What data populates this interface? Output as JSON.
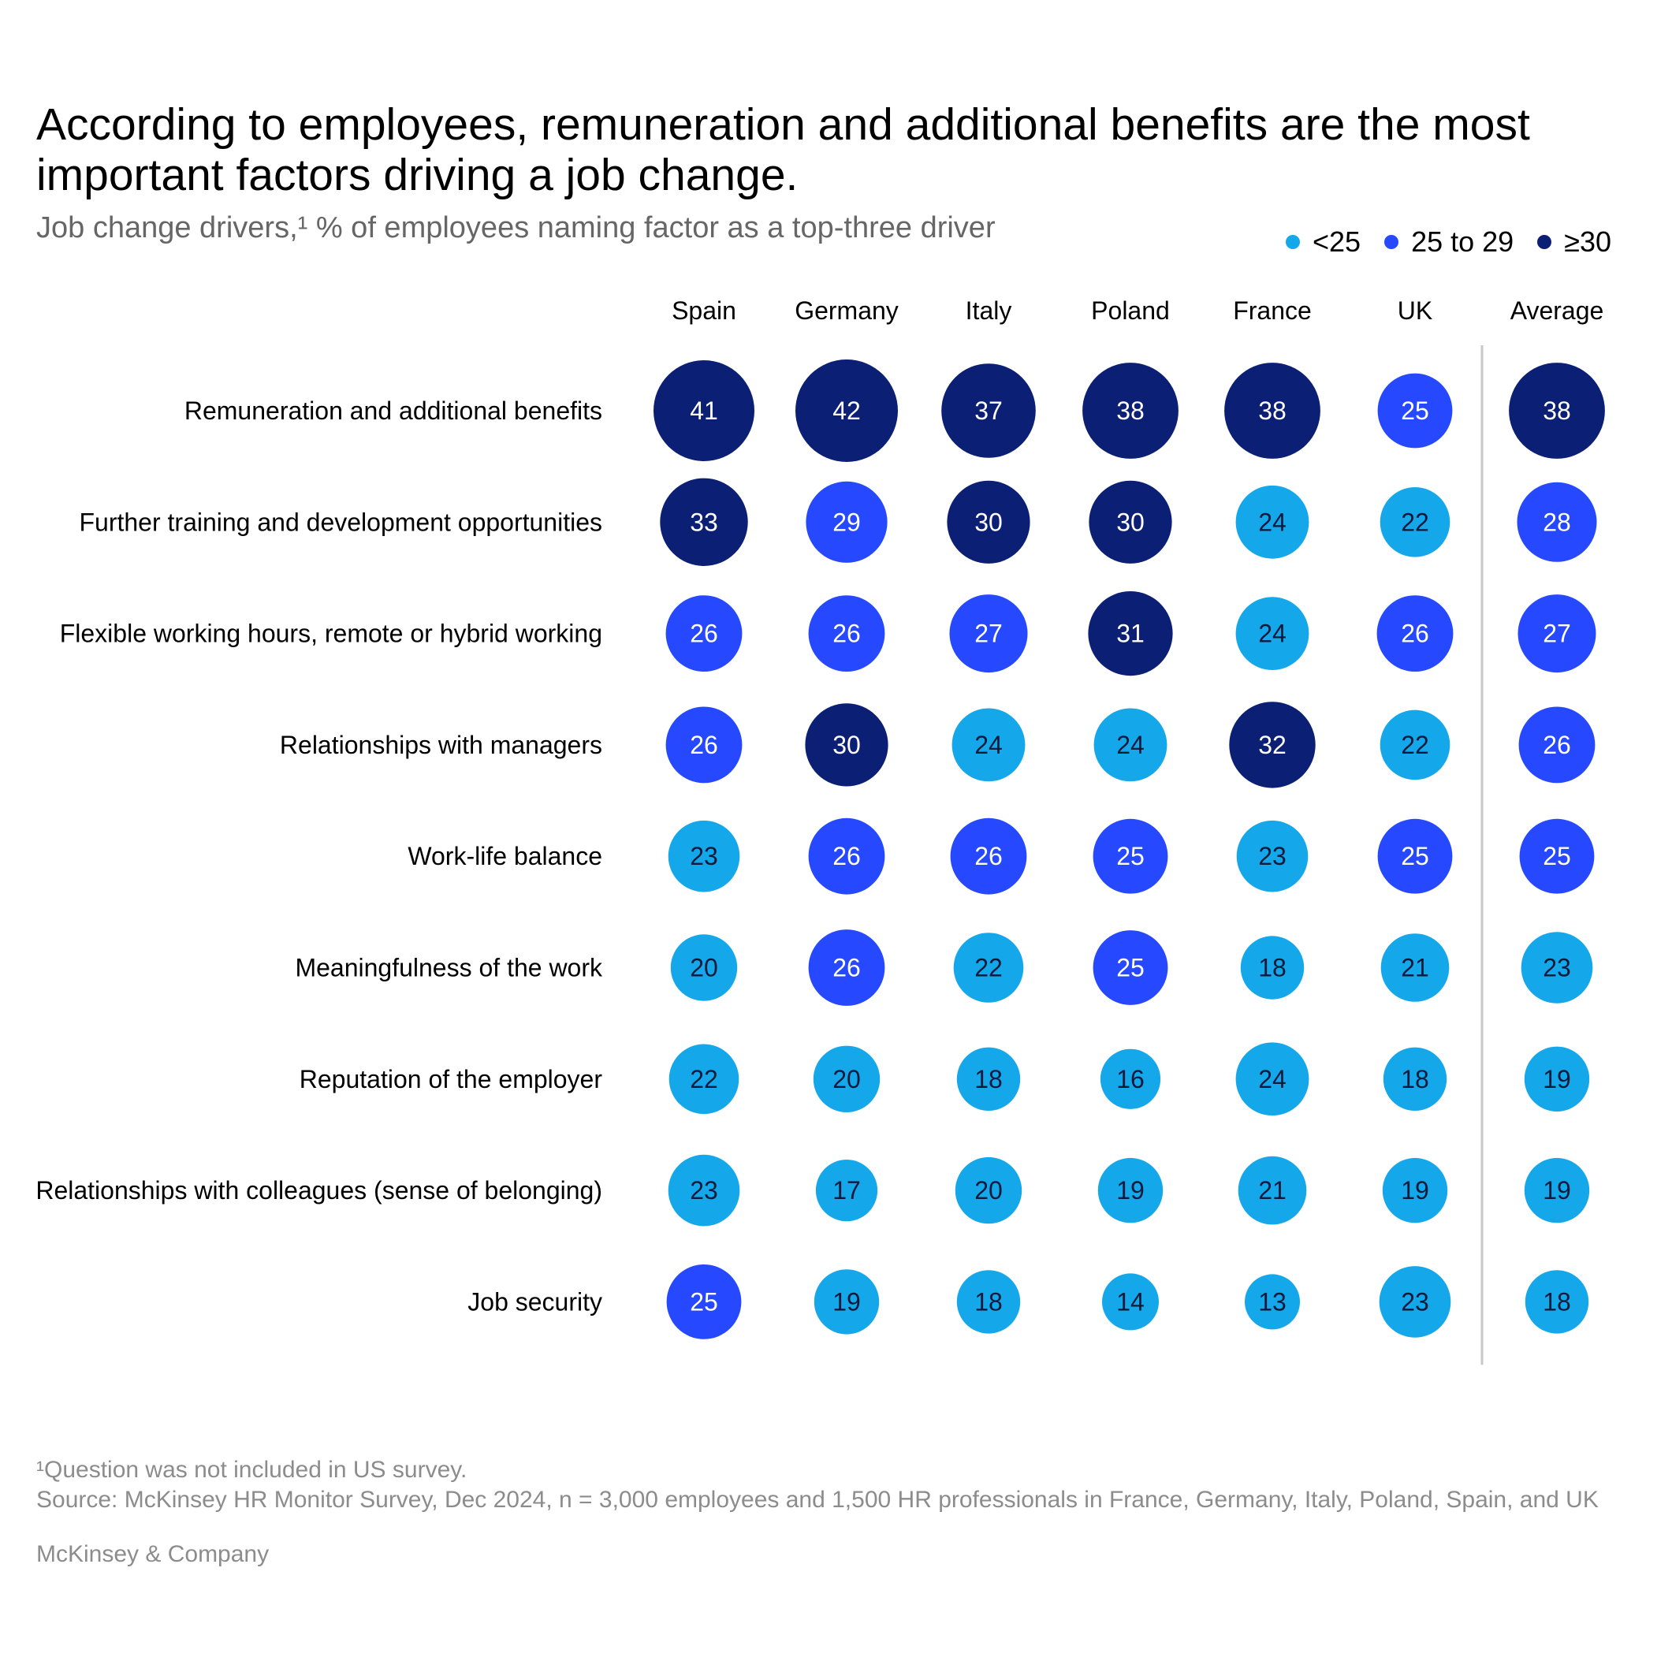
{
  "title": "According to employees, remuneration and additional benefits are the most important factors driving a job change.",
  "subtitle": "Job change drivers,¹ % of employees naming factor as a top-three driver",
  "legend": [
    {
      "label": "<25",
      "color": "#14A7EA"
    },
    {
      "label": "25 to 29",
      "color": "#2649FF"
    },
    {
      "label": "≥30",
      "color": "#0B1F74"
    }
  ],
  "chart_data": {
    "type": "table",
    "columns": [
      "Spain",
      "Germany",
      "Italy",
      "Poland",
      "France",
      "UK",
      "Average"
    ],
    "rows": [
      {
        "label": "Remuneration and additional benefits",
        "values": [
          41,
          42,
          37,
          38,
          38,
          25,
          38
        ]
      },
      {
        "label": "Further training and development opportunities",
        "values": [
          33,
          29,
          30,
          30,
          24,
          22,
          28
        ]
      },
      {
        "label": "Flexible working hours, remote or hybrid working",
        "values": [
          26,
          26,
          27,
          31,
          24,
          26,
          27
        ]
      },
      {
        "label": "Relationships with managers",
        "values": [
          26,
          30,
          24,
          24,
          32,
          22,
          26
        ]
      },
      {
        "label": "Work-life balance",
        "values": [
          23,
          26,
          26,
          25,
          23,
          25,
          25
        ]
      },
      {
        "label": "Meaningfulness of the work",
        "values": [
          20,
          26,
          22,
          25,
          18,
          21,
          23
        ]
      },
      {
        "label": "Reputation of the employer",
        "values": [
          22,
          20,
          18,
          16,
          24,
          18,
          19
        ]
      },
      {
        "label": "Relationships with colleagues (sense of belonging)",
        "values": [
          23,
          17,
          20,
          19,
          21,
          19,
          19
        ]
      },
      {
        "label": "Job security",
        "values": [
          25,
          19,
          18,
          14,
          13,
          23,
          18
        ]
      }
    ],
    "thresholds": {
      "low_max_exclusive": 25,
      "high_min": 30
    },
    "colors": {
      "low": "#14A7EA",
      "mid": "#2649FF",
      "high": "#0B1F74"
    }
  },
  "footnote": "¹Question was not included in US survey.",
  "source": "Source: McKinsey HR Monitor Survey, Dec 2024, n = 3,000 employees and 1,500 HR professionals in France, Germany, Italy, Poland, Spain, and UK",
  "brand": "McKinsey & Company"
}
